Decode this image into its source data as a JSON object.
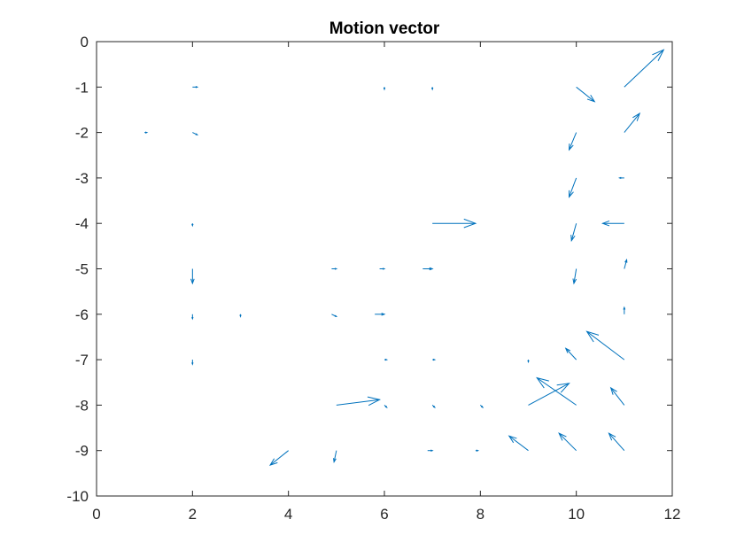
{
  "chart_data": {
    "type": "quiver",
    "title": "Motion vector",
    "xlabel": "",
    "ylabel": "",
    "xlim": [
      0,
      12
    ],
    "ylim": [
      -10,
      0
    ],
    "xticks": [
      0,
      2,
      4,
      6,
      8,
      10,
      12
    ],
    "yticks": [
      0,
      -1,
      -2,
      -3,
      -4,
      -5,
      -6,
      -7,
      -8,
      -9,
      -10
    ],
    "xtick_labels": [
      "0",
      "2",
      "4",
      "6",
      "8",
      "10",
      "12"
    ],
    "ytick_labels": [
      "0",
      "-1",
      "-2",
      "-3",
      "-4",
      "-5",
      "-6",
      "-7",
      "-8",
      "-9",
      "-10"
    ],
    "grid": false,
    "color": "#0072BD",
    "vectors": [
      {
        "x": 11,
        "y": -1,
        "u": 0.82,
        "v": 0.82
      },
      {
        "x": 10,
        "y": -1,
        "u": 0.38,
        "v": -0.32
      },
      {
        "x": 11,
        "y": -2,
        "u": 0.32,
        "v": 0.42
      },
      {
        "x": 10,
        "y": -2,
        "u": -0.15,
        "v": -0.38
      },
      {
        "x": 10,
        "y": -3,
        "u": -0.15,
        "v": -0.42
      },
      {
        "x": 11,
        "y": -3,
        "u": -0.1,
        "v": 0
      },
      {
        "x": 7,
        "y": -4,
        "u": 0.9,
        "v": 0
      },
      {
        "x": 10,
        "y": -4,
        "u": -0.1,
        "v": -0.38
      },
      {
        "x": 11,
        "y": -4,
        "u": -0.45,
        "v": 0
      },
      {
        "x": 10,
        "y": -5,
        "u": -0.05,
        "v": -0.32
      },
      {
        "x": 11,
        "y": -5,
        "u": 0.05,
        "v": 0.2
      },
      {
        "x": 2,
        "y": -5,
        "u": 0,
        "v": -0.32
      },
      {
        "x": 4.9,
        "y": -5,
        "u": 0.1,
        "v": 0
      },
      {
        "x": 5.9,
        "y": -5,
        "u": 0.1,
        "v": 0
      },
      {
        "x": 6.8,
        "y": -5,
        "u": 0.2,
        "v": 0
      },
      {
        "x": 11,
        "y": -6,
        "u": 0,
        "v": 0.15
      },
      {
        "x": 4.9,
        "y": -6,
        "u": 0.1,
        "v": -0.05
      },
      {
        "x": 5.8,
        "y": -6,
        "u": 0.2,
        "v": 0
      },
      {
        "x": 11,
        "y": -7,
        "u": -0.78,
        "v": 0.62
      },
      {
        "x": 10,
        "y": -7,
        "u": -0.22,
        "v": 0.25
      },
      {
        "x": 9,
        "y": -8,
        "u": 0.85,
        "v": 0.48
      },
      {
        "x": 10,
        "y": -8,
        "u": -0.82,
        "v": 0.6
      },
      {
        "x": 11,
        "y": -8,
        "u": -0.28,
        "v": 0.38
      },
      {
        "x": 5,
        "y": -8,
        "u": 0.9,
        "v": 0.12
      },
      {
        "x": 9,
        "y": -9,
        "u": -0.4,
        "v": 0.32
      },
      {
        "x": 10,
        "y": -9,
        "u": -0.36,
        "v": 0.38
      },
      {
        "x": 11,
        "y": -9,
        "u": -0.32,
        "v": 0.38
      },
      {
        "x": 4,
        "y": -9,
        "u": -0.38,
        "v": -0.32
      },
      {
        "x": 5,
        "y": -9,
        "u": -0.05,
        "v": -0.25
      },
      {
        "x": 6.9,
        "y": -9,
        "u": 0.1,
        "v": 0
      },
      {
        "x": 7.9,
        "y": -9,
        "u": 0.05,
        "v": 0
      },
      {
        "x": 2,
        "y": -1,
        "u": 0.1,
        "v": 0
      },
      {
        "x": 2,
        "y": -2,
        "u": 0.1,
        "v": -0.05
      },
      {
        "x": 1,
        "y": -2,
        "u": 0.05,
        "v": 0
      },
      {
        "x": 6,
        "y": -1,
        "u": 0,
        "v": -0.05
      },
      {
        "x": 7,
        "y": -1,
        "u": 0,
        "v": -0.05
      },
      {
        "x": 2,
        "y": -4,
        "u": 0,
        "v": -0.05
      },
      {
        "x": 2,
        "y": -6,
        "u": 0,
        "v": -0.1
      },
      {
        "x": 3,
        "y": -6,
        "u": 0,
        "v": -0.05
      },
      {
        "x": 2,
        "y": -7,
        "u": 0,
        "v": -0.1
      },
      {
        "x": 6,
        "y": -7,
        "u": 0.05,
        "v": 0
      },
      {
        "x": 7,
        "y": -7,
        "u": 0.05,
        "v": 0
      },
      {
        "x": 6,
        "y": -8,
        "u": 0.05,
        "v": -0.05
      },
      {
        "x": 7,
        "y": -8,
        "u": 0.05,
        "v": -0.05
      },
      {
        "x": 8,
        "y": -8,
        "u": 0.05,
        "v": -0.05
      },
      {
        "x": 9,
        "y": -7,
        "u": 0,
        "v": -0.05
      }
    ]
  }
}
